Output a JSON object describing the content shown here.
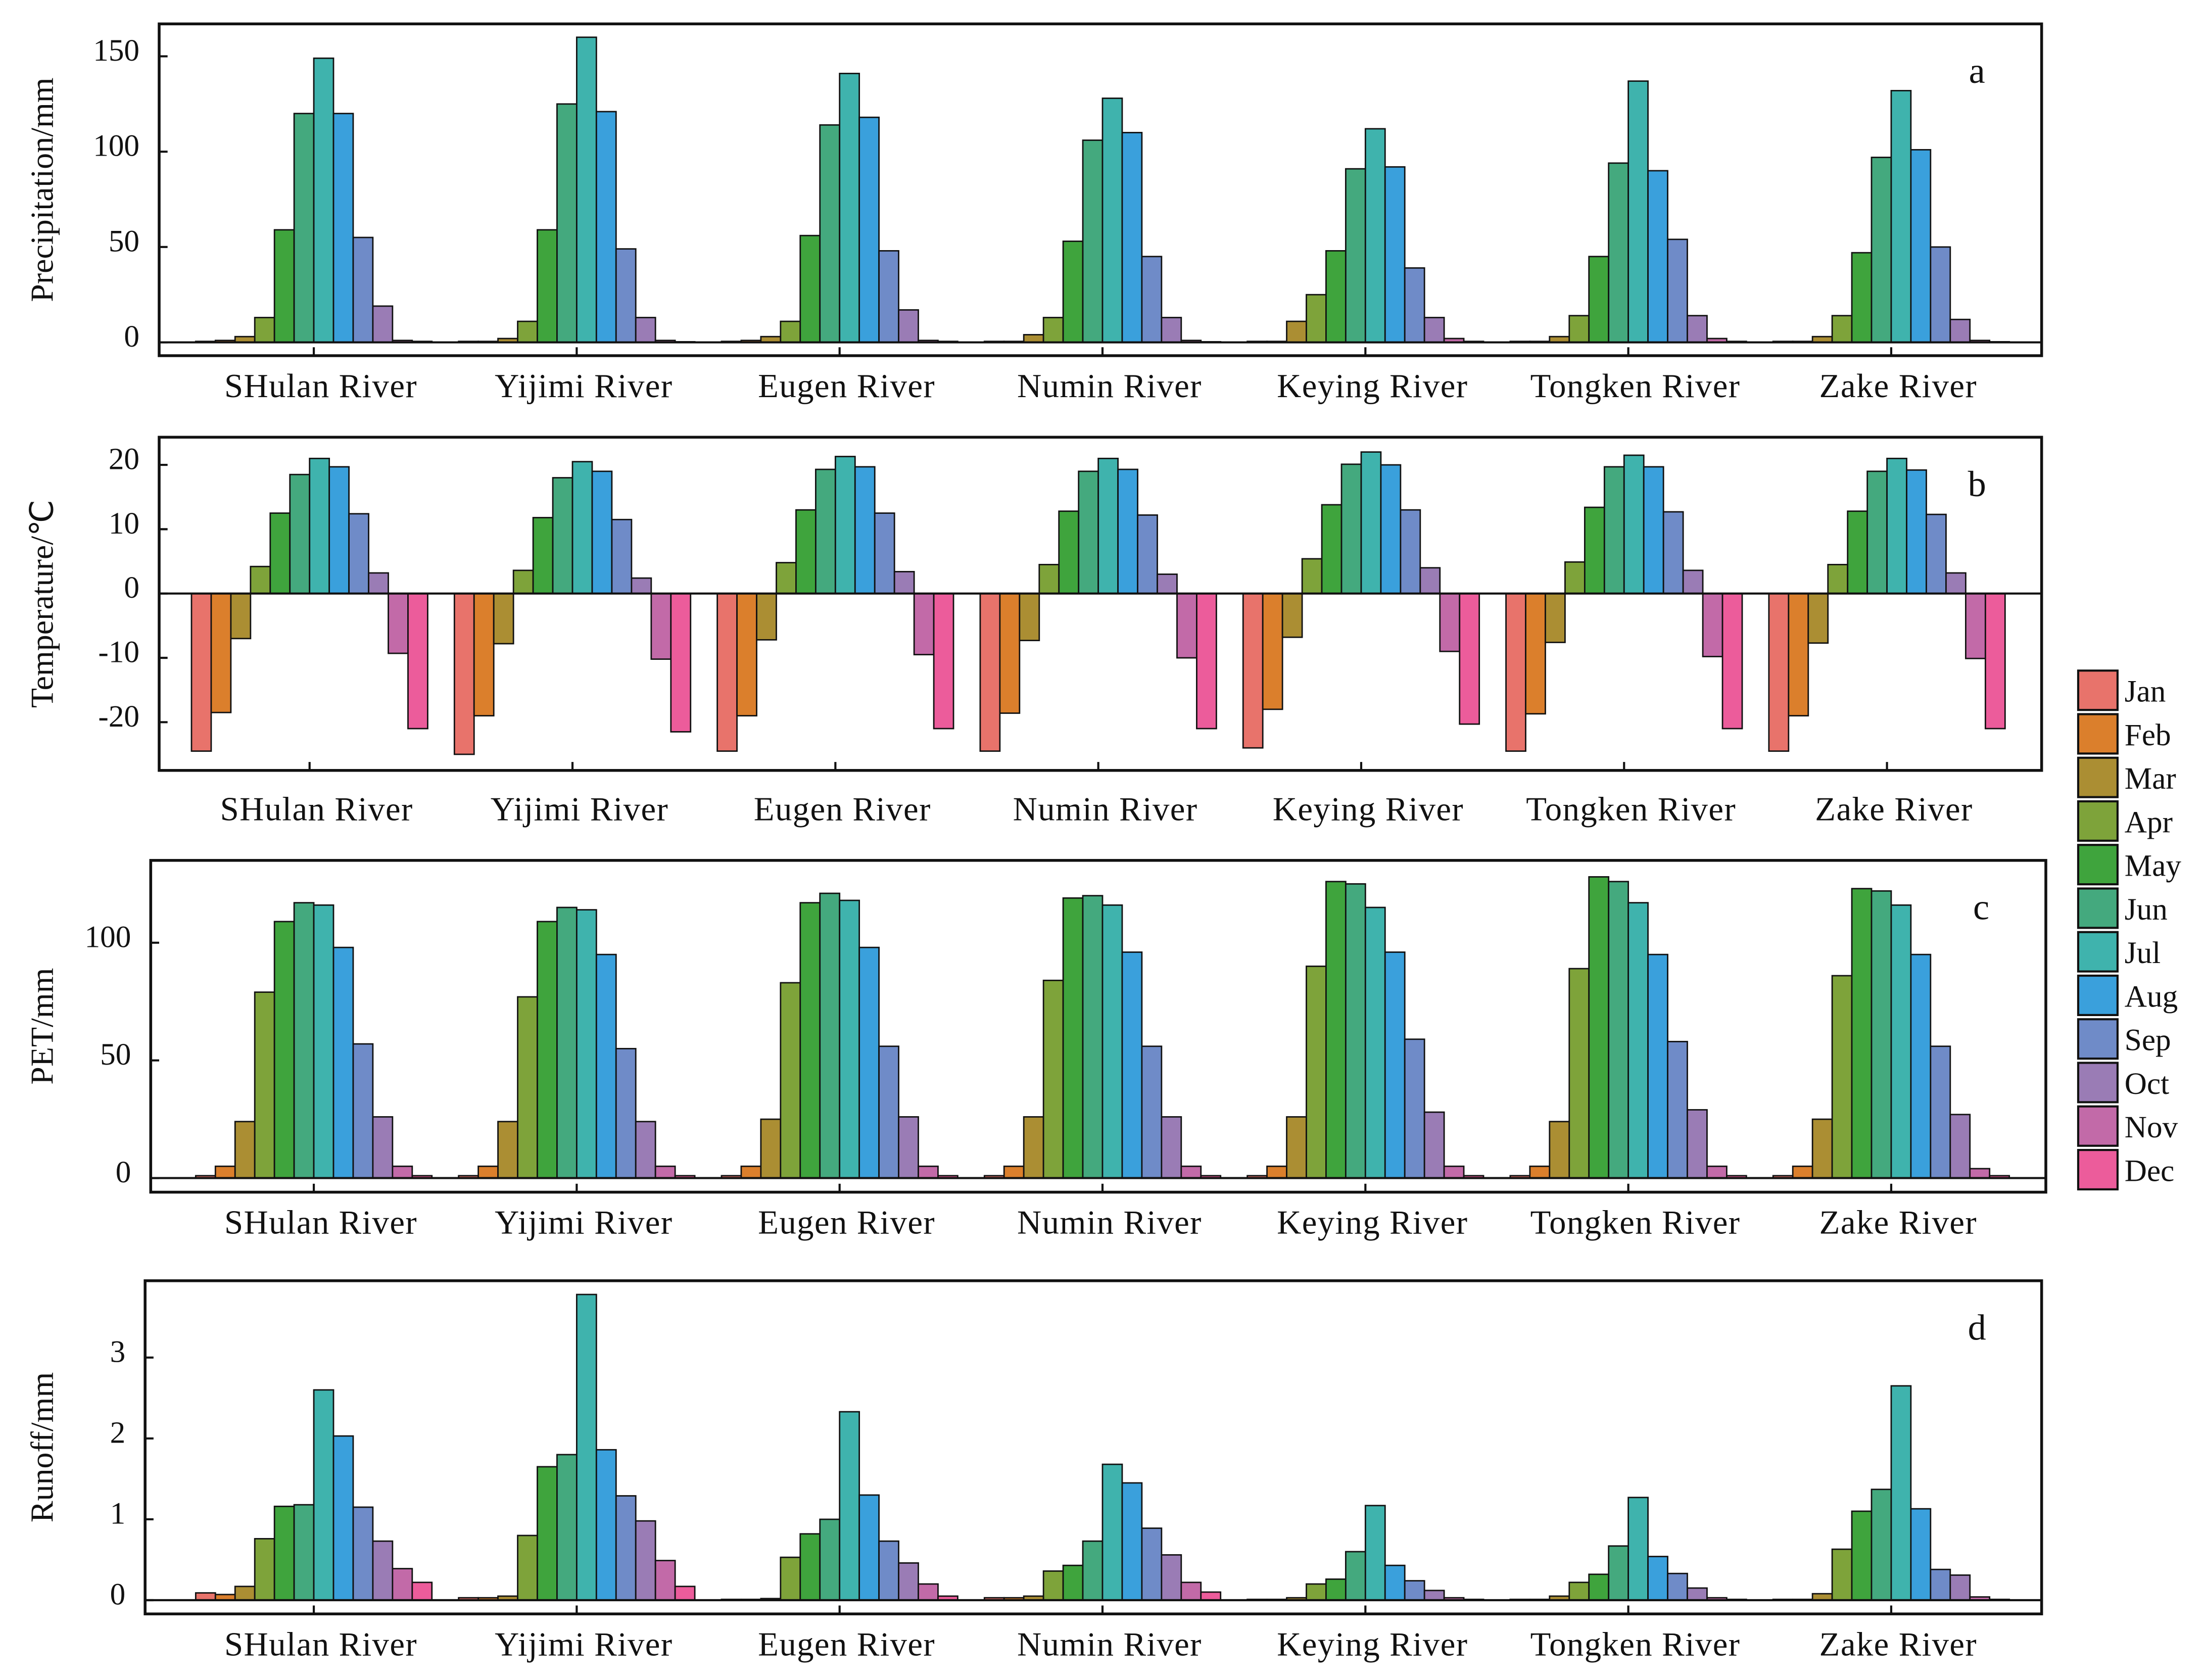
{
  "legend": [
    {
      "name": "Jan",
      "color": "#e8736b"
    },
    {
      "name": "Feb",
      "color": "#db7f2c"
    },
    {
      "name": "Mar",
      "color": "#ab8e33"
    },
    {
      "name": "Apr",
      "color": "#7ea33a"
    },
    {
      "name": "May",
      "color": "#3fa43d"
    },
    {
      "name": "Jun",
      "color": "#44a97e"
    },
    {
      "name": "Jul",
      "color": "#3fb3ad"
    },
    {
      "name": "Aug",
      "color": "#3aa0dc"
    },
    {
      "name": "Sep",
      "color": "#6f8bc8"
    },
    {
      "name": "Oct",
      "color": "#9a7cb5"
    },
    {
      "name": "Nov",
      "color": "#c26aa8"
    },
    {
      "name": "Dec",
      "color": "#ec5c9b"
    }
  ],
  "chart_data": [
    {
      "type": "bar",
      "y_label": "Precipitation/mm",
      "annotation": "a",
      "categories": [
        "SHulan River",
        "Yijimi River",
        "Eugen River",
        "Numin River",
        "Keying River",
        "Tongken River",
        "Zake River"
      ],
      "ylim": [
        -7,
        167
      ],
      "yticks": [
        0,
        50,
        100,
        150
      ],
      "series": [
        {
          "values": [
            0.5,
            0.5,
            0.5,
            0.5,
            0.5,
            0.5,
            0.5
          ]
        },
        {
          "values": [
            1,
            0.5,
            1,
            0.5,
            0.5,
            0.5,
            0.5
          ]
        },
        {
          "values": [
            3,
            2,
            3,
            4,
            11,
            3,
            3
          ]
        },
        {
          "values": [
            13,
            11,
            11,
            13,
            25,
            14,
            14
          ]
        },
        {
          "values": [
            59,
            59,
            56,
            53,
            48,
            45,
            47
          ]
        },
        {
          "values": [
            120,
            125,
            114,
            106,
            91,
            94,
            97
          ]
        },
        {
          "values": [
            149,
            160,
            141,
            128,
            112,
            137,
            132
          ]
        },
        {
          "values": [
            120,
            121,
            118,
            110,
            92,
            90,
            101
          ]
        },
        {
          "values": [
            55,
            49,
            48,
            45,
            39,
            54,
            50
          ]
        },
        {
          "values": [
            19,
            13,
            17,
            13,
            13,
            14,
            12
          ]
        },
        {
          "values": [
            1,
            1,
            1,
            1,
            2,
            2,
            1
          ]
        },
        {
          "values": [
            0.5,
            0.3,
            0.5,
            0.3,
            0.5,
            0.5,
            0.3
          ]
        }
      ]
    },
    {
      "type": "bar",
      "y_label": "Temperature/℃",
      "annotation": "b",
      "categories": [
        "SHulan River",
        "Yijimi River",
        "Eugen River",
        "Numin River",
        "Keying River",
        "Tongken River",
        "Zake River"
      ],
      "ylim": [
        -27.5,
        24.3
      ],
      "yticks": [
        -20,
        -10,
        0,
        10,
        20
      ],
      "series": [
        {
          "values": [
            -24.5,
            -25,
            -24.5,
            -24.5,
            -24,
            -24.5,
            -24.5
          ]
        },
        {
          "values": [
            -18.5,
            -19,
            -19,
            -18.6,
            -18,
            -18.7,
            -19
          ]
        },
        {
          "values": [
            -7,
            -7.8,
            -7.2,
            -7.3,
            -6.8,
            -7.6,
            -7.7
          ]
        },
        {
          "values": [
            4.2,
            3.6,
            4.8,
            4.5,
            5.4,
            4.9,
            4.5
          ]
        },
        {
          "values": [
            12.5,
            11.8,
            13,
            12.8,
            13.8,
            13.4,
            12.8
          ]
        },
        {
          "values": [
            18.5,
            18,
            19.3,
            19,
            20.1,
            19.7,
            19
          ]
        },
        {
          "values": [
            21,
            20.5,
            21.3,
            21,
            22,
            21.5,
            21
          ]
        },
        {
          "values": [
            19.7,
            19,
            19.7,
            19.3,
            20,
            19.7,
            19.2
          ]
        },
        {
          "values": [
            12.4,
            11.5,
            12.5,
            12.2,
            13,
            12.7,
            12.3
          ]
        },
        {
          "values": [
            3.2,
            2.4,
            3.4,
            3,
            4,
            3.6,
            3.2
          ]
        },
        {
          "values": [
            -9.3,
            -10.2,
            -9.5,
            -10,
            -9,
            -9.8,
            -10.1
          ]
        },
        {
          "values": [
            -21,
            -21.5,
            -21,
            -21,
            -20.3,
            -21,
            -21
          ]
        }
      ]
    },
    {
      "type": "bar",
      "y_label": "PET/mm",
      "annotation": "c",
      "categories": [
        "SHulan River",
        "Yijimi River",
        "Eugen River",
        "Numin River",
        "Keying River",
        "Tongken River",
        "Zake River"
      ],
      "ylim": [
        -6,
        135
      ],
      "yticks": [
        0,
        50,
        100
      ],
      "series": [
        {
          "values": [
            1,
            1,
            1,
            1,
            1,
            1,
            1
          ]
        },
        {
          "values": [
            5,
            5,
            5,
            5,
            5,
            5,
            5
          ]
        },
        {
          "values": [
            24,
            24,
            25,
            26,
            26,
            24,
            25
          ]
        },
        {
          "values": [
            79,
            77,
            83,
            84,
            90,
            89,
            86
          ]
        },
        {
          "values": [
            109,
            109,
            117,
            119,
            126,
            128,
            123
          ]
        },
        {
          "values": [
            117,
            115,
            121,
            120,
            125,
            126,
            122
          ]
        },
        {
          "values": [
            116,
            114,
            118,
            116,
            115,
            117,
            116
          ]
        },
        {
          "values": [
            98,
            95,
            98,
            96,
            96,
            95,
            95
          ]
        },
        {
          "values": [
            57,
            55,
            56,
            56,
            59,
            58,
            56
          ]
        },
        {
          "values": [
            26,
            24,
            26,
            26,
            28,
            29,
            27
          ]
        },
        {
          "values": [
            5,
            5,
            5,
            5,
            5,
            5,
            4
          ]
        },
        {
          "values": [
            1,
            1,
            1,
            1,
            1,
            1,
            1
          ]
        }
      ]
    },
    {
      "type": "bar",
      "y_label": "Runoff/mm",
      "annotation": "d",
      "categories": [
        "SHulan River",
        "Yijimi River",
        "Eugen River",
        "Numin River",
        "Keying River",
        "Tongken River",
        "Zake River"
      ],
      "ylim": [
        -0.17,
        3.95
      ],
      "yticks": [
        0,
        1,
        2,
        3
      ],
      "series": [
        {
          "values": [
            0.09,
            0.03,
            0.01,
            0.03,
            0.01,
            0.01,
            0.01
          ]
        },
        {
          "values": [
            0.07,
            0.03,
            0.01,
            0.03,
            0.01,
            0.01,
            0.01
          ]
        },
        {
          "values": [
            0.17,
            0.05,
            0.02,
            0.05,
            0.03,
            0.05,
            0.08
          ]
        },
        {
          "values": [
            0.76,
            0.8,
            0.53,
            0.36,
            0.2,
            0.22,
            0.63
          ]
        },
        {
          "values": [
            1.16,
            1.65,
            0.82,
            0.43,
            0.26,
            0.32,
            1.1
          ]
        },
        {
          "values": [
            1.18,
            1.8,
            1,
            0.73,
            0.6,
            0.67,
            1.37
          ]
        },
        {
          "values": [
            2.6,
            3.78,
            2.33,
            1.68,
            1.17,
            1.27,
            2.65
          ]
        },
        {
          "values": [
            2.03,
            1.86,
            1.3,
            1.45,
            0.43,
            0.54,
            1.13
          ]
        },
        {
          "values": [
            1.15,
            1.29,
            0.73,
            0.89,
            0.24,
            0.33,
            0.38
          ]
        },
        {
          "values": [
            0.73,
            0.98,
            0.46,
            0.56,
            0.12,
            0.15,
            0.31
          ]
        },
        {
          "values": [
            0.39,
            0.49,
            0.2,
            0.22,
            0.03,
            0.03,
            0.04
          ]
        },
        {
          "values": [
            0.22,
            0.17,
            0.05,
            0.1,
            0.01,
            0.01,
            0.01
          ]
        }
      ]
    }
  ]
}
